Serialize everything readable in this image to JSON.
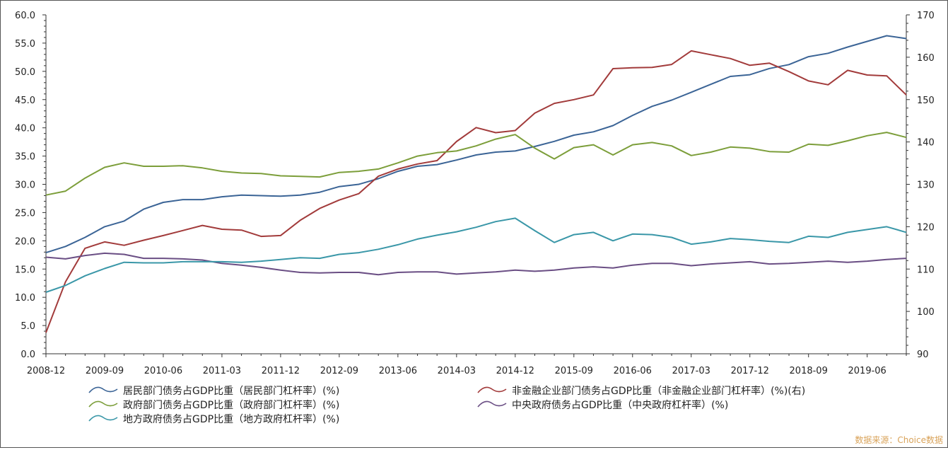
{
  "chart_data": {
    "type": "line",
    "x": [
      "2008-12",
      "2009-03",
      "2009-06",
      "2009-09",
      "2009-12",
      "2010-03",
      "2010-06",
      "2010-09",
      "2010-12",
      "2011-03",
      "2011-06",
      "2011-09",
      "2011-12",
      "2012-03",
      "2012-06",
      "2012-09",
      "2012-12",
      "2013-03",
      "2013-06",
      "2013-09",
      "2013-12",
      "2014-03",
      "2014-06",
      "2014-09",
      "2014-12",
      "2015-03",
      "2015-06",
      "2015-09",
      "2015-12",
      "2016-03",
      "2016-06",
      "2016-09",
      "2016-12",
      "2017-03",
      "2017-06",
      "2017-09",
      "2017-12",
      "2018-03",
      "2018-06",
      "2018-09",
      "2018-12",
      "2019-03",
      "2019-06",
      "2019-09",
      "2019-12"
    ],
    "x_tick_labels": [
      "2008-12",
      "2009-09",
      "2010-06",
      "2011-03",
      "2011-12",
      "2012-09",
      "2013-06",
      "2014-03",
      "2014-12",
      "2015-09",
      "2016-06",
      "2017-03",
      "2017-12",
      "2018-09",
      "2019-06"
    ],
    "ylim_left": [
      0,
      60
    ],
    "yticks_left": [
      "0.0",
      "5.0",
      "10.0",
      "15.0",
      "20.0",
      "25.0",
      "30.0",
      "35.0",
      "40.0",
      "45.0",
      "50.0",
      "55.0",
      "60.0"
    ],
    "ylim_right": [
      90,
      170
    ],
    "yticks_right": [
      "90",
      "100",
      "110",
      "120",
      "130",
      "140",
      "150",
      "160",
      "170"
    ],
    "grid": false,
    "legend_position": "bottom",
    "series": [
      {
        "name": "居民部门债务占GDP比重（居民部门杠杆率）(%)",
        "axis": "left",
        "color": "#3b6496",
        "values": [
          17.9,
          19.0,
          20.6,
          22.5,
          23.5,
          25.6,
          26.8,
          27.3,
          27.3,
          27.8,
          28.1,
          28.0,
          27.9,
          28.1,
          28.6,
          29.6,
          30.0,
          31.0,
          32.3,
          33.2,
          33.5,
          34.3,
          35.2,
          35.7,
          35.9,
          36.7,
          37.6,
          38.7,
          39.3,
          40.4,
          42.2,
          43.8,
          44.9,
          46.3,
          47.7,
          49.1,
          49.4,
          50.5,
          51.2,
          52.6,
          53.2,
          54.3,
          55.3,
          56.3,
          55.8
        ]
      },
      {
        "name": "非金融企业部门债务占GDP比重（非金融企业部门杠杆率）(%)(右)",
        "axis": "right",
        "color": "#a23b3b",
        "values": [
          95.0,
          107.0,
          114.9,
          116.4,
          115.6,
          116.8,
          117.9,
          119.1,
          120.3,
          119.4,
          119.2,
          117.7,
          117.9,
          121.5,
          124.3,
          126.3,
          127.8,
          131.9,
          133.6,
          134.8,
          135.6,
          140.1,
          143.4,
          142.2,
          142.7,
          146.8,
          149.1,
          150.0,
          151.1,
          157.3,
          157.5,
          157.6,
          158.3,
          161.5,
          160.6,
          159.7,
          158.1,
          158.6,
          156.6,
          154.4,
          153.5,
          156.9,
          155.8,
          155.6,
          151.1
        ]
      },
      {
        "name": "政府部门债务占GDP比重（政府部门杠杆率）(%)",
        "axis": "left",
        "color": "#7c9e3a",
        "values": [
          28.1,
          28.8,
          31.1,
          33.0,
          33.8,
          33.2,
          33.2,
          33.3,
          32.9,
          32.3,
          32.0,
          31.9,
          31.5,
          31.4,
          31.3,
          32.1,
          32.3,
          32.7,
          33.8,
          35.0,
          35.6,
          35.9,
          36.8,
          38.0,
          38.8,
          36.4,
          34.5,
          36.5,
          37.0,
          35.2,
          37.0,
          37.4,
          36.8,
          35.1,
          35.7,
          36.6,
          36.4,
          35.8,
          35.7,
          37.1,
          36.9,
          37.7,
          38.6,
          39.2,
          38.3
        ]
      },
      {
        "name": "中央政府债务占GDP比重（中央政府杠杆率）(%)",
        "axis": "left",
        "color": "#6a4e84",
        "values": [
          17.1,
          16.8,
          17.4,
          17.8,
          17.6,
          16.9,
          16.9,
          16.8,
          16.6,
          16.0,
          15.7,
          15.3,
          14.8,
          14.4,
          14.3,
          14.4,
          14.4,
          14.0,
          14.4,
          14.5,
          14.5,
          14.1,
          14.3,
          14.5,
          14.8,
          14.6,
          14.8,
          15.2,
          15.4,
          15.2,
          15.7,
          16.0,
          16.0,
          15.6,
          15.9,
          16.1,
          16.3,
          15.9,
          16.0,
          16.2,
          16.4,
          16.2,
          16.4,
          16.7,
          16.9
        ]
      },
      {
        "name": "地方政府债务占GDP比重（地方政府杠杆率）(%)",
        "axis": "left",
        "color": "#3a97a8",
        "values": [
          10.9,
          12.1,
          13.8,
          15.1,
          16.2,
          16.1,
          16.1,
          16.3,
          16.3,
          16.3,
          16.2,
          16.4,
          16.7,
          17.0,
          16.9,
          17.6,
          17.9,
          18.5,
          19.3,
          20.3,
          21.0,
          21.6,
          22.4,
          23.4,
          24.0,
          21.8,
          19.7,
          21.1,
          21.5,
          20.0,
          21.2,
          21.1,
          20.6,
          19.4,
          19.8,
          20.4,
          20.2,
          19.9,
          19.7,
          20.8,
          20.6,
          21.5,
          22.0,
          22.5,
          21.5
        ]
      }
    ]
  },
  "source_label": "数据来源：Choice数据"
}
